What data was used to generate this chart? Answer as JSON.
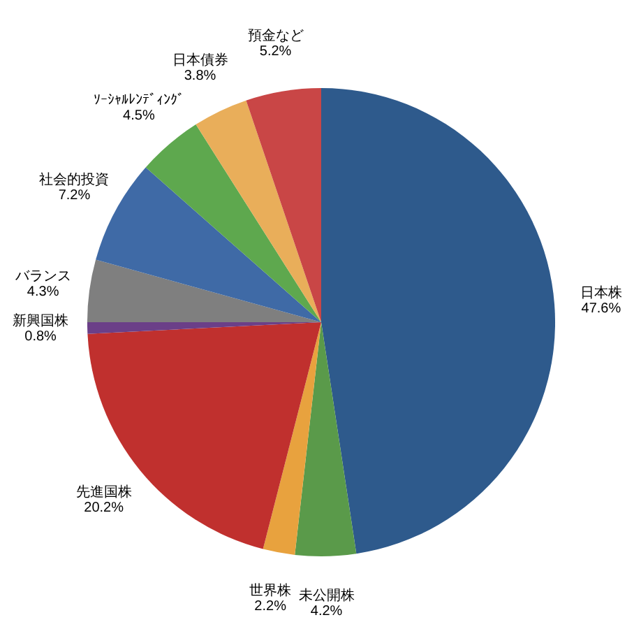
{
  "chart_data": {
    "type": "pie",
    "categories": [
      "日本株",
      "未公開株",
      "世界株",
      "先進国株",
      "新興国株",
      "バランス",
      "社会的投資",
      "ｿｰｼｬﾙﾚﾝﾃﾞｨﾝｸﾞ",
      "日本債券",
      "預金など"
    ],
    "values": [
      47.6,
      4.2,
      2.2,
      20.2,
      0.8,
      4.3,
      7.2,
      4.5,
      3.8,
      5.2
    ],
    "value_labels": [
      "47.6%",
      "4.2%",
      "2.2%",
      "20.2%",
      "0.8%",
      "4.3%",
      "7.2%",
      "4.5%",
      "3.8%",
      "5.2%"
    ],
    "colors": [
      "#2e5a8c",
      "#5a9a4a",
      "#e8a23e",
      "#c0302e",
      "#6b3f88",
      "#7f7f7f",
      "#3f6aa6",
      "#5ea84e",
      "#e9ae5a",
      "#c94646"
    ]
  }
}
